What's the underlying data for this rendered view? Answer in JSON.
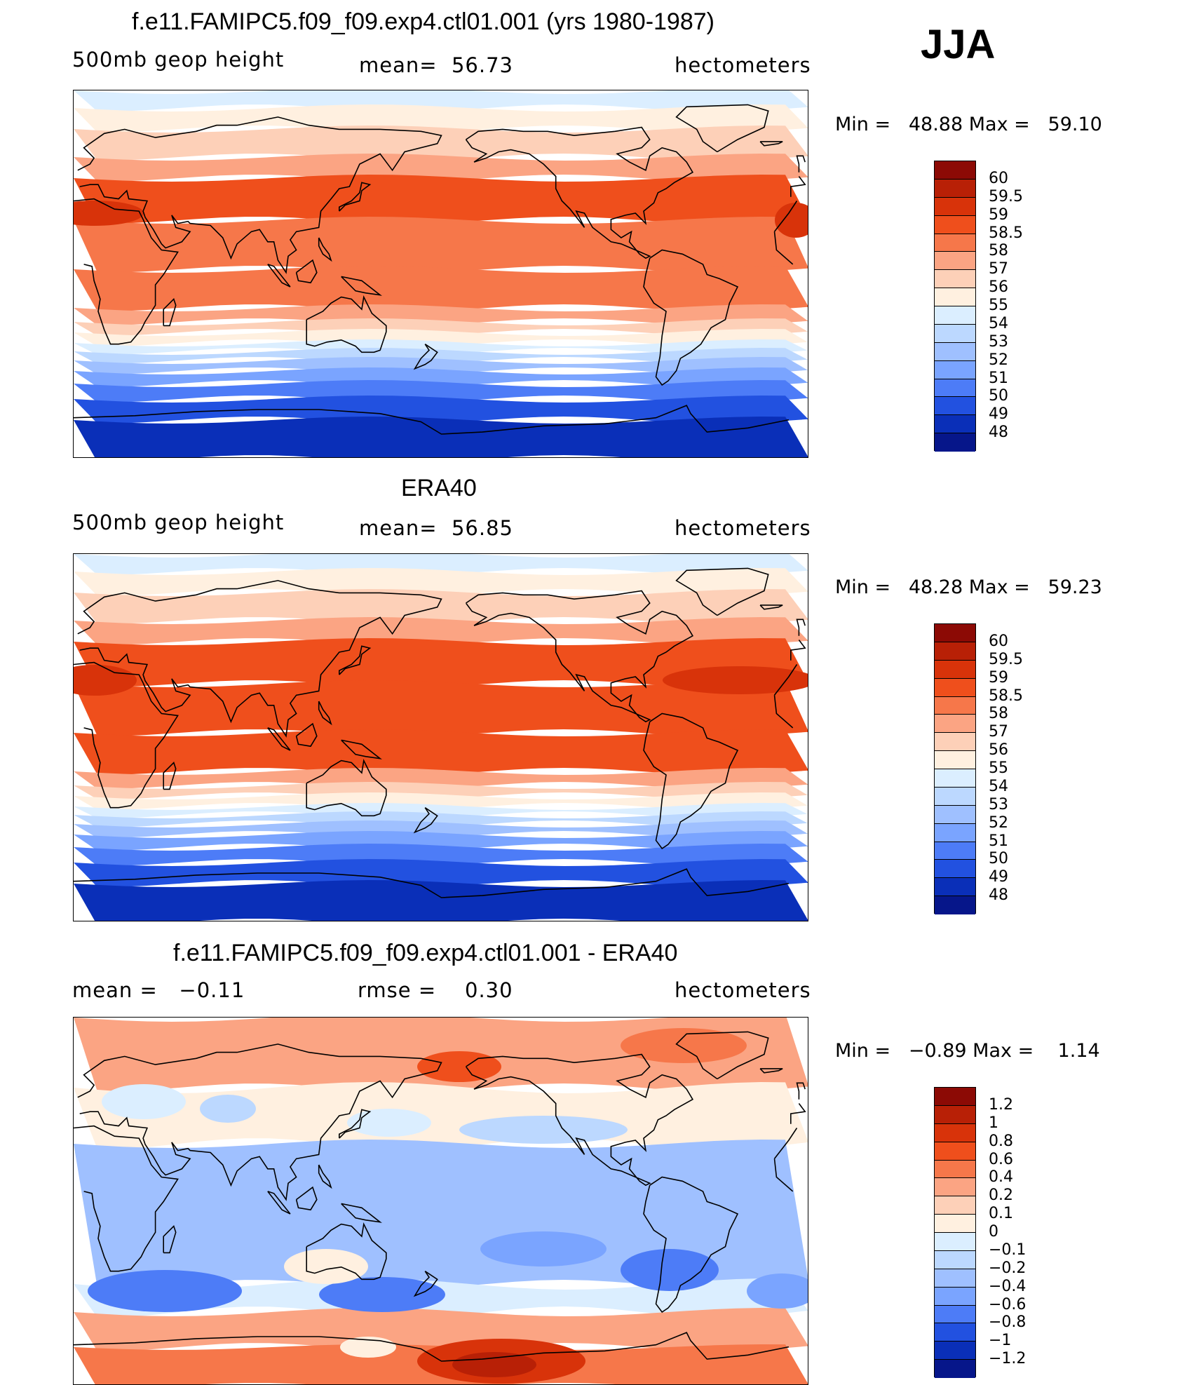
{
  "season": "JJA",
  "panels": [
    {
      "title": "f.e11.FAMIPC5.f09_f09.exp4.ctl01.001 (yrs 1980-1987)",
      "left_label": "500mb geop height",
      "center_label": "mean=  56.73",
      "right_label": "hectometers",
      "minmax": "Min =   48.88 Max =   59.10",
      "colorbar_labels": [
        "60",
        "59.5",
        "59",
        "58.5",
        "58",
        "57",
        "56",
        "55",
        "54",
        "53",
        "52",
        "51",
        "50",
        "49",
        "48"
      ],
      "colors": [
        "#8c0a05",
        "#b82006",
        "#d8330a",
        "#ef4f1c",
        "#f6774a",
        "#fba483",
        "#fdd0b8",
        "#fff0e0",
        "#dbeeff",
        "#bcd8ff",
        "#9fc0ff",
        "#7aa4ff",
        "#4d7cf7",
        "#2251e0",
        "#0a2fb8",
        "#06168a"
      ],
      "kind": "model"
    },
    {
      "title": "ERA40",
      "left_label": "500mb geop height",
      "center_label": "mean=  56.85",
      "right_label": "hectometers",
      "minmax": "Min =   48.28 Max =   59.23",
      "colorbar_labels": [
        "60",
        "59.5",
        "59",
        "58.5",
        "58",
        "57",
        "56",
        "55",
        "54",
        "53",
        "52",
        "51",
        "50",
        "49",
        "48"
      ],
      "colors": [
        "#8c0a05",
        "#b82006",
        "#d8330a",
        "#ef4f1c",
        "#f6774a",
        "#fba483",
        "#fdd0b8",
        "#fff0e0",
        "#dbeeff",
        "#bcd8ff",
        "#9fc0ff",
        "#7aa4ff",
        "#4d7cf7",
        "#2251e0",
        "#0a2fb8",
        "#06168a"
      ],
      "kind": "obs"
    },
    {
      "title": "f.e11.FAMIPC5.f09_f09.exp4.ctl01.001 - ERA40",
      "left_label": "mean =   −0.11",
      "center_label": "rmse =    0.30",
      "right_label": "hectometers",
      "minmax": "Min =   −0.89 Max =    1.14",
      "colorbar_labels": [
        "1.2",
        "1",
        "0.8",
        "0.6",
        "0.4",
        "0.2",
        "0.1",
        "0",
        "−0.1",
        "−0.2",
        "−0.4",
        "−0.6",
        "−0.8",
        "−1",
        "−1.2"
      ],
      "colors": [
        "#8c0a05",
        "#b82006",
        "#d8330a",
        "#ef4f1c",
        "#f6774a",
        "#fba483",
        "#fdd0b8",
        "#fff0e0",
        "#dbeeff",
        "#bcd8ff",
        "#9fc0ff",
        "#7aa4ff",
        "#4d7cf7",
        "#2251e0",
        "#0a2fb8",
        "#06168a"
      ],
      "kind": "diff"
    }
  ]
}
